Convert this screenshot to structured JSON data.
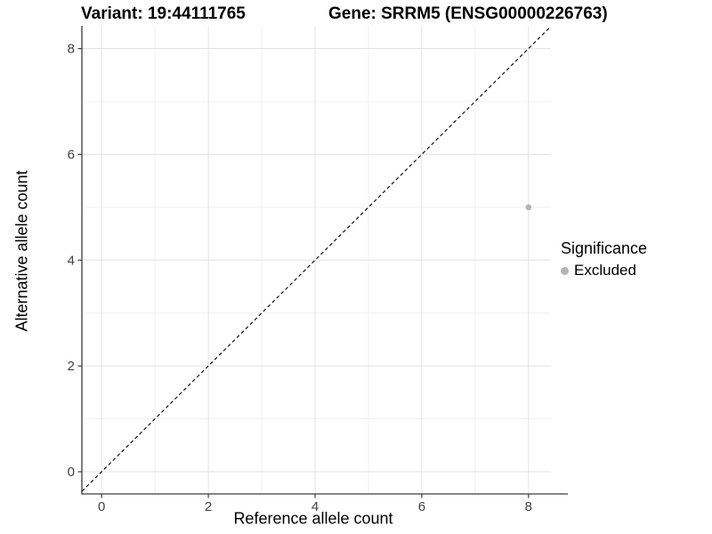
{
  "chart_data": {
    "type": "scatter",
    "title_left": "Variant: 19:44111765",
    "title_right": "Gene: SRRM5 (ENSG00000226763)",
    "xlabel": "Reference allele count",
    "ylabel": "Alternative allele count",
    "xticks": [
      0,
      2,
      4,
      6,
      8
    ],
    "yticks": [
      0,
      2,
      4,
      6,
      8
    ],
    "xticks_minor": [
      1,
      3,
      5,
      7
    ],
    "yticks_minor": [
      1,
      3,
      5,
      7
    ],
    "xlim": [
      -0.37,
      8.42
    ],
    "ylim": [
      -0.42,
      8.43
    ],
    "grid": "major and minor gridlines, light gray on white panel",
    "reference_line": {
      "equation": "y = x",
      "style": "dashed",
      "color": "#000000"
    },
    "points": [
      {
        "x": 8,
        "y": 5,
        "significance": "Excluded"
      }
    ],
    "legend": {
      "position": "right",
      "title": "Significance",
      "items": [
        {
          "label": "Excluded",
          "color": "#b4b4b4"
        }
      ]
    },
    "colors": {
      "point": "#b4b4b4",
      "grid_major": "#e3e3e3",
      "grid_minor": "#f0f0f0",
      "axis_line": "#3c3c3c",
      "tick_text": "#404040",
      "title_text": "#000000"
    }
  }
}
